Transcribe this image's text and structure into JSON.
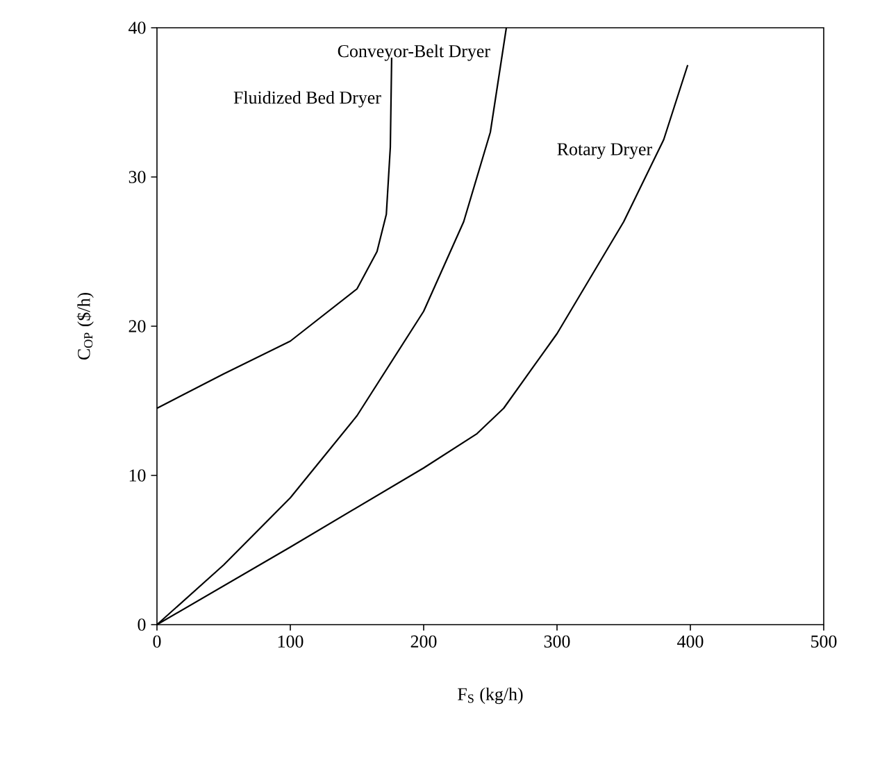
{
  "chart_data": {
    "type": "line",
    "xlabel": "F$_{S}$ (kg/h)",
    "ylabel": "C$_{OP}$ ($/h)",
    "xlim": [
      0,
      500
    ],
    "ylim": [
      0,
      40
    ],
    "xticks": [
      0,
      100,
      200,
      300,
      400,
      500
    ],
    "yticks": [
      0,
      10,
      20,
      30,
      40
    ],
    "grid": false,
    "legend": false,
    "marker": "none",
    "line_style": "solid",
    "series": [
      {
        "name": "Fluidized Bed Dryer",
        "color": "#000000",
        "x": [
          0,
          50,
          100,
          150,
          165,
          172,
          175,
          176
        ],
        "values": [
          14.5,
          16.8,
          19,
          22.5,
          25,
          27.5,
          32,
          38
        ]
      },
      {
        "name": "Conveyor-Belt Dryer",
        "color": "#000000",
        "x": [
          0,
          50,
          100,
          150,
          200,
          230,
          250,
          262
        ],
        "values": [
          0,
          4,
          8.5,
          14,
          21,
          27,
          33,
          40
        ]
      },
      {
        "name": "Rotary Dryer",
        "color": "#000000",
        "x": [
          0,
          100,
          200,
          240,
          260,
          300,
          350,
          380,
          398
        ],
        "values": [
          0,
          5.2,
          10.5,
          12.8,
          14.5,
          19.5,
          27,
          32.5,
          37.5
        ]
      }
    ]
  }
}
